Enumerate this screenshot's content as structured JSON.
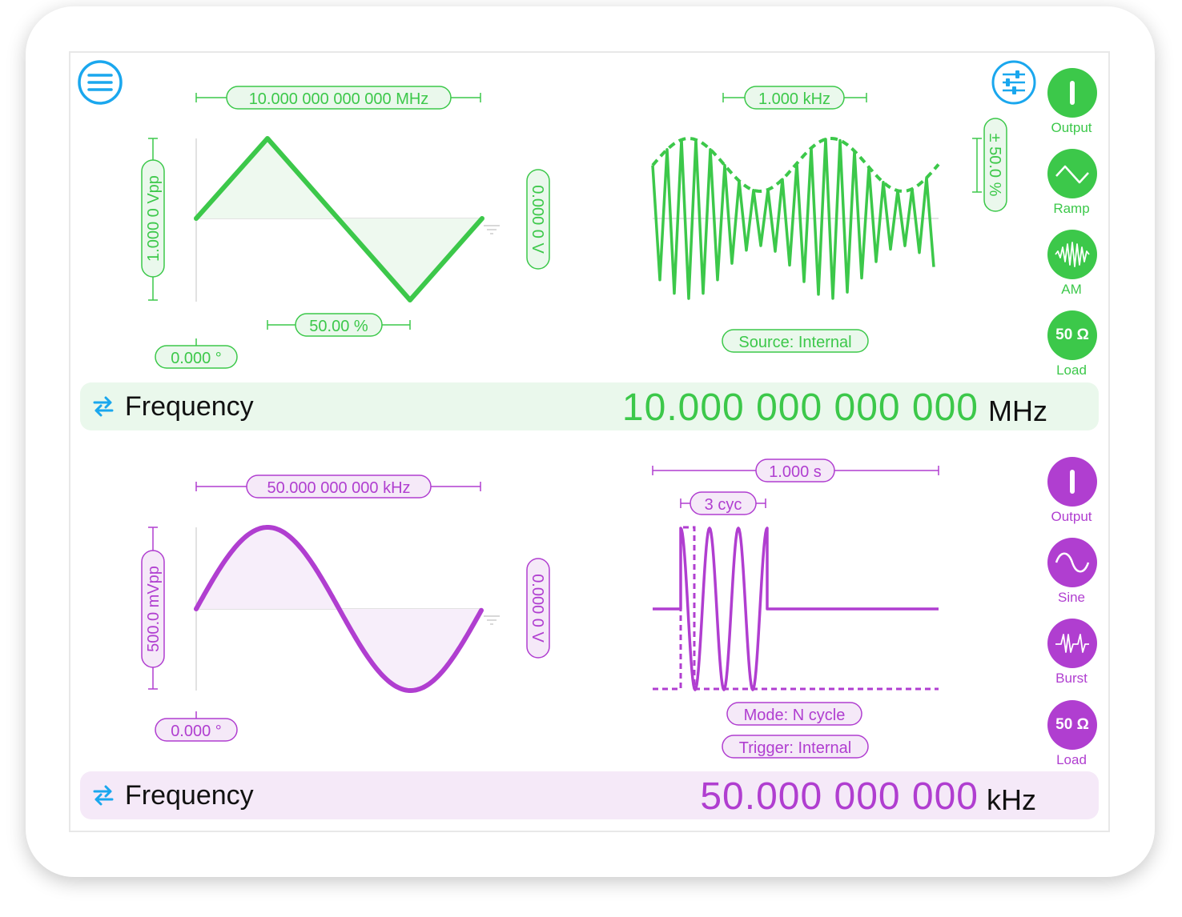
{
  "colors": {
    "green": "#3cc84a",
    "purple": "#b03ed0",
    "blue": "#1aa7ee",
    "green_fill": "#eaf8ec",
    "purple_fill": "#f5e9f8"
  },
  "icons": {
    "menu": "hamburger-circle-icon",
    "settings": "sliders-icon",
    "swap": "swap-arrows-icon",
    "output": "power-icon",
    "ramp": "triangle-wave-icon",
    "am": "am-wave-icon",
    "sine": "sine-wave-icon",
    "burst": "burst-wave-icon"
  },
  "channel1": {
    "frequency_pill": "10.000 000 000 000 MHz",
    "amplitude_pill": "1.000 0 Vpp",
    "offset_pill": "0.000 0 V",
    "symmetry_pill": "50.00 %",
    "phase_pill": "0.000 °",
    "mod_frequency_pill": "1.000 kHz",
    "mod_depth_pill": "± 50.0 %",
    "mod_source_pill": "Source: Internal",
    "freq_bar": {
      "label": "Frequency",
      "value": "10.000 000 000 000",
      "unit": "MHz"
    },
    "buttons": {
      "output": "Output",
      "waveform": "Ramp",
      "modulation": "AM",
      "load_value": "50 Ω",
      "load": "Load"
    }
  },
  "channel2": {
    "frequency_pill": "50.000 000 000 kHz",
    "amplitude_pill": "500.0 mVpp",
    "offset_pill": "0.000 0 V",
    "phase_pill": "0.000 °",
    "burst_period_pill": "1.000 s",
    "burst_cycles_pill": "3 cyc",
    "burst_mode_pill": "Mode: N cycle",
    "burst_trigger_pill": "Trigger: Internal",
    "freq_bar": {
      "label": "Frequency",
      "value": "50.000 000 000",
      "unit": "kHz"
    },
    "buttons": {
      "output": "Output",
      "waveform": "Sine",
      "modulation": "Burst",
      "load_value": "50 Ω",
      "load": "Load"
    }
  }
}
